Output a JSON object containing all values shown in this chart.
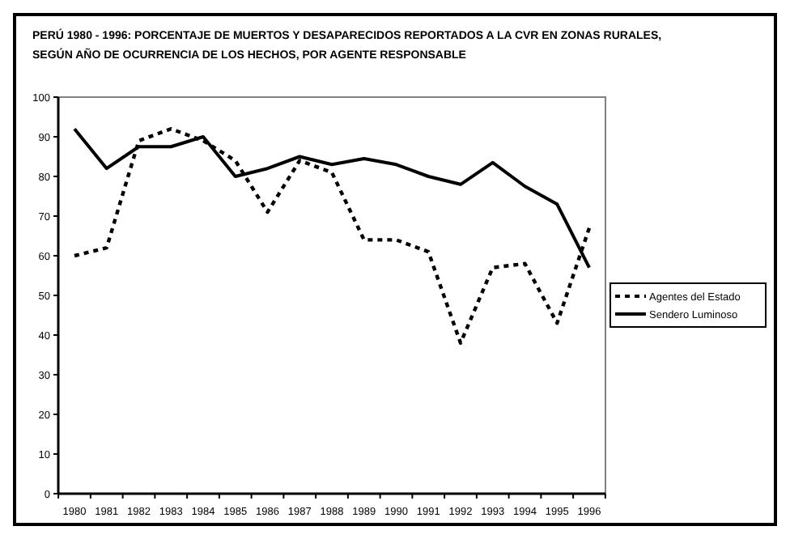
{
  "chart_data": {
    "type": "line",
    "title": "PERÚ 1980 - 1996: PORCENTAJE DE MUERTOS Y DESAPARECIDOS REPORTADOS A LA CVR EN ZONAS RURALES, SEGÚN AÑO DE OCURRENCIA DE LOS HECHOS, POR AGENTE RESPONSABLE",
    "categories": [
      "1980",
      "1981",
      "1982",
      "1983",
      "1984",
      "1985",
      "1986",
      "1987",
      "1988",
      "1989",
      "1990",
      "1991",
      "1992",
      "1993",
      "1994",
      "1995",
      "1996"
    ],
    "series": [
      {
        "name": "Agentes del Estado",
        "color": "#000000",
        "line_style": "dashed",
        "values": [
          60,
          62,
          89,
          92,
          89,
          84,
          71,
          84,
          81,
          64,
          64,
          61,
          38,
          57,
          58,
          43,
          67
        ]
      },
      {
        "name": "Sendero Luminoso",
        "color": "#000000",
        "line_style": "solid",
        "values": [
          92,
          82,
          87.5,
          87.5,
          90,
          80,
          82,
          85,
          83,
          84.5,
          83,
          80,
          78,
          83.5,
          77.5,
          73,
          57
        ]
      }
    ],
    "ylim": [
      0,
      100
    ],
    "yticks": [
      0,
      10,
      20,
      30,
      40,
      50,
      60,
      70,
      80,
      90,
      100
    ],
    "grid": false,
    "legend": "right"
  }
}
